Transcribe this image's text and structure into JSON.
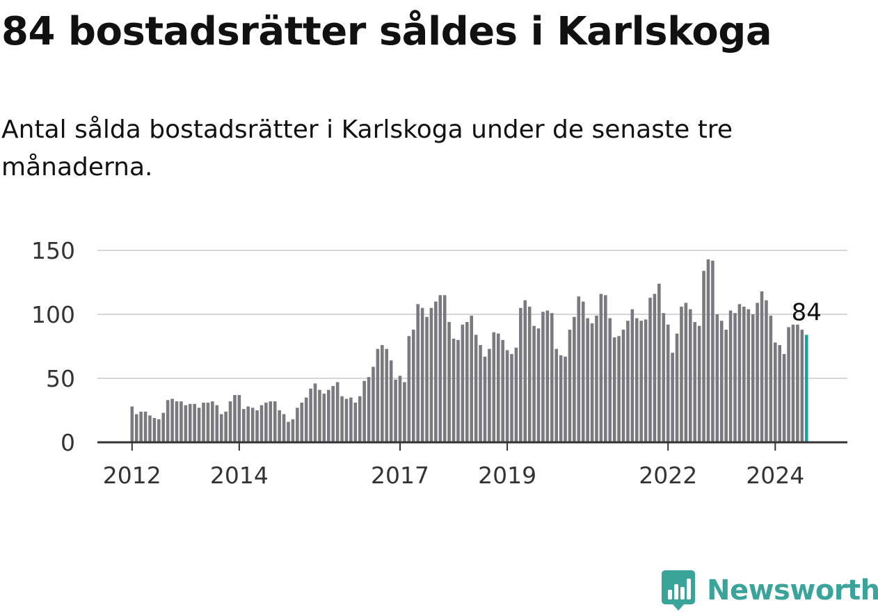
{
  "title": "84 bostadsrätter såldes i Karlskoga",
  "subtitle": "Antal sålda bostadsrätter i Karlskoga under de senaste tre månaderna.",
  "brand": {
    "name": "Newsworthy",
    "icon": "newsworthy-logo-icon",
    "color": "#3aa39a"
  },
  "chart_data": {
    "type": "bar",
    "title": "",
    "xlabel": "",
    "ylabel": "",
    "ylim": [
      0,
      150
    ],
    "yticks": [
      0,
      50,
      100,
      150
    ],
    "grid": true,
    "x_tick_labels": [
      "2012",
      "2014",
      "2017",
      "2019",
      "2022",
      "2024"
    ],
    "start": "2012-01",
    "end": "2024-07",
    "values": [
      28,
      22,
      24,
      24,
      21,
      19,
      18,
      23,
      33,
      34,
      32,
      32,
      29,
      30,
      30,
      27,
      31,
      31,
      32,
      29,
      22,
      24,
      32,
      37,
      37,
      26,
      28,
      27,
      25,
      29,
      31,
      32,
      32,
      25,
      22,
      16,
      18,
      27,
      31,
      35,
      42,
      46,
      41,
      38,
      41,
      44,
      47,
      36,
      34,
      35,
      31,
      36,
      48,
      51,
      59,
      73,
      76,
      73,
      64,
      49,
      52,
      47,
      83,
      88,
      108,
      105,
      98,
      105,
      110,
      115,
      115,
      94,
      81,
      80,
      92,
      94,
      99,
      84,
      76,
      67,
      73,
      86,
      85,
      80,
      72,
      69,
      74,
      105,
      111,
      106,
      91,
      89,
      102,
      103,
      101,
      73,
      68,
      67,
      88,
      98,
      114,
      110,
      97,
      93,
      99,
      116,
      115,
      97,
      82,
      83,
      88,
      95,
      104,
      97,
      95,
      96,
      113,
      116,
      124,
      101,
      92,
      70,
      85,
      106,
      109,
      104,
      94,
      91,
      134,
      143,
      142,
      100,
      95,
      88,
      103,
      101,
      108,
      106,
      104,
      100,
      109,
      118,
      111,
      99,
      78,
      76,
      69,
      90,
      92,
      92,
      88,
      84
    ],
    "highlight_last": true,
    "highlight_label": "84",
    "bar_color": "#7a7980",
    "highlight_color": "#12a59c"
  }
}
